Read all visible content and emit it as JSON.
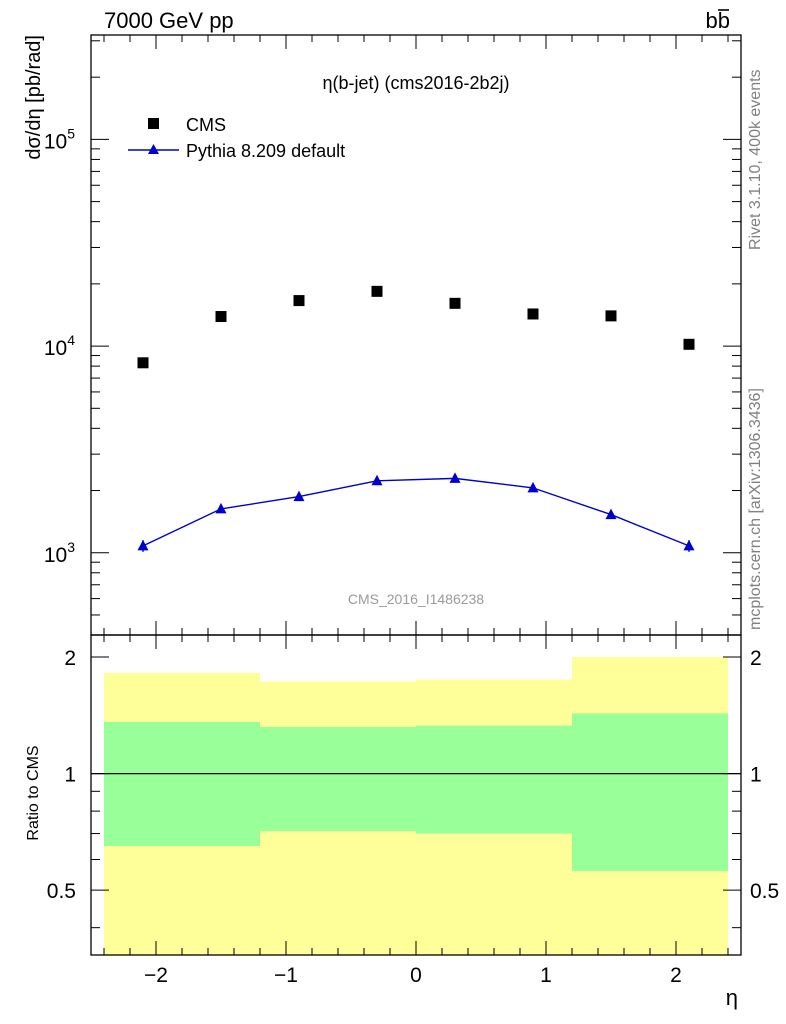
{
  "header": {
    "left": "7000 GeV pp",
    "right_base": "b",
    "right_bar": "b"
  },
  "side_labels": {
    "upper": "Rivet 3.1.10,  400k events",
    "lower": "mcplots.cern.ch [arXiv:1306.3436]"
  },
  "chart_data": [
    {
      "type": "scatter",
      "title": "η(b-jet) (cms2016-2b2j)",
      "watermark": "CMS_2016_I1486238",
      "xlabel": "η",
      "ylabel": "dσ/dη [pb/rad]",
      "yscale": "log",
      "xlim": [
        -2.5,
        2.5
      ],
      "ylim": [
        400,
        320000
      ],
      "x_ticks": [
        "−2",
        "−1",
        "0",
        "1",
        "2"
      ],
      "y_ticks": [
        {
          "value": 1000,
          "base": "10",
          "exp": "3"
        },
        {
          "value": 10000,
          "base": "10",
          "exp": "4"
        },
        {
          "value": 100000,
          "base": "10",
          "exp": "5"
        }
      ],
      "legend_position": "top-left",
      "series": [
        {
          "name": "CMS",
          "marker": "square",
          "color": "#000000",
          "x": [
            -2.1,
            -1.5,
            -0.9,
            -0.3,
            0.3,
            0.9,
            1.5,
            2.1
          ],
          "y": [
            8300,
            13900,
            16600,
            18400,
            16100,
            14300,
            14000,
            10200
          ]
        },
        {
          "name": "Pythia 8.209 default",
          "marker": "triangle",
          "color": "#0000cc",
          "x": [
            -2.1,
            -1.5,
            -0.9,
            -0.3,
            0.3,
            0.9,
            1.5,
            2.1
          ],
          "y": [
            1080,
            1630,
            1870,
            2230,
            2290,
            2060,
            1530,
            1080
          ],
          "yerr": [
            70,
            70,
            70,
            70,
            60,
            60,
            70,
            70
          ]
        }
      ]
    },
    {
      "type": "area",
      "ylabel": "Ratio to CMS",
      "xlabel": "η",
      "xlim": [
        -2.5,
        2.5
      ],
      "ylim": [
        0.34,
        2.28
      ],
      "y_ticks": [
        "0.5",
        "1",
        "2"
      ],
      "reference_line": 1,
      "bands": [
        {
          "x_low": -2.4,
          "x_high": -1.2,
          "green": [
            0.65,
            1.36
          ],
          "yellow": [
            0.34,
            1.82
          ]
        },
        {
          "x_low": -1.2,
          "x_high": 0.0,
          "green": [
            0.71,
            1.32
          ],
          "yellow": [
            0.34,
            1.73
          ]
        },
        {
          "x_low": 0.0,
          "x_high": 1.2,
          "green": [
            0.7,
            1.33
          ],
          "yellow": [
            0.34,
            1.75
          ]
        },
        {
          "x_low": 1.2,
          "x_high": 2.4,
          "green": [
            0.56,
            1.43
          ],
          "yellow": [
            0.34,
            2.0
          ]
        }
      ],
      "colors": {
        "green": "#99ff99",
        "yellow": "#ffff99"
      }
    }
  ]
}
